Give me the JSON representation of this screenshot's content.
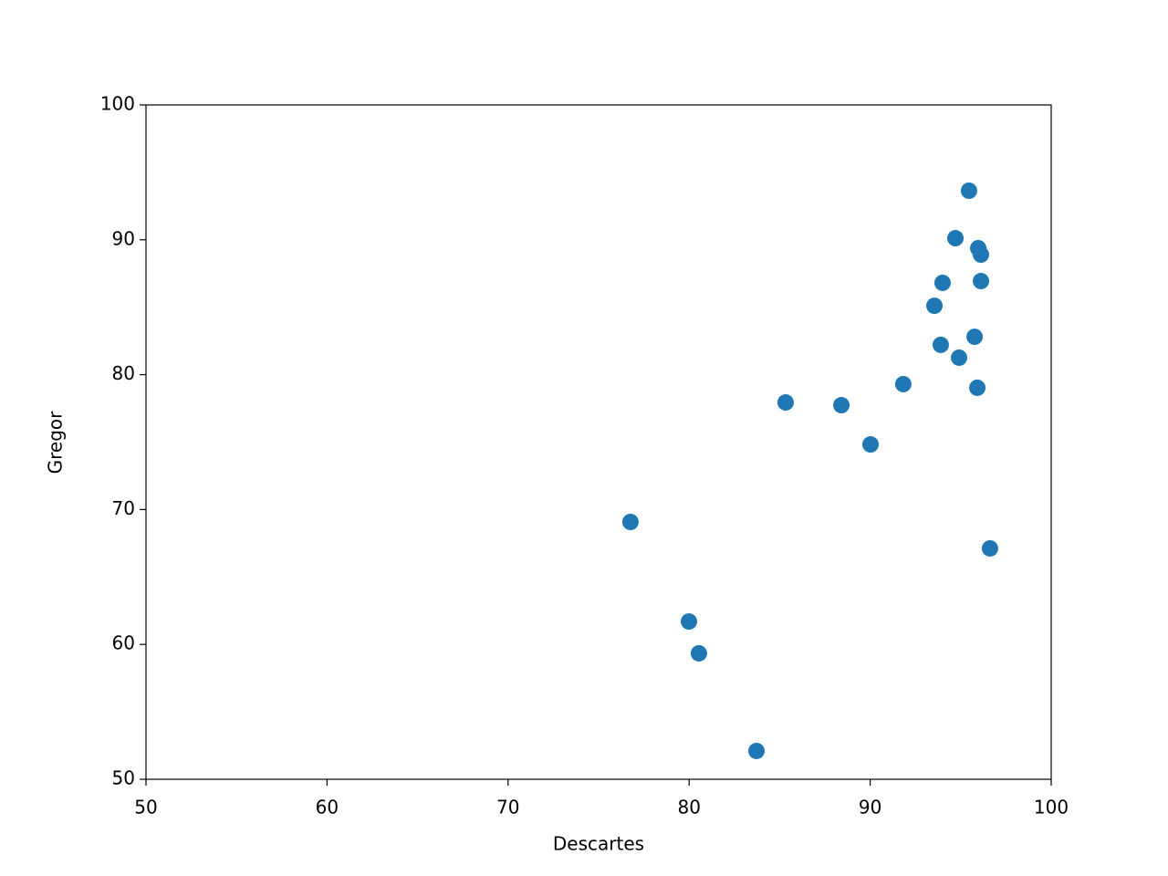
{
  "chart_data": {
    "type": "scatter",
    "x_label": "Descartes",
    "y_label": "Gregor",
    "color": "#1f77b4",
    "x": [
      95.46,
      94.71,
      95.97,
      96.12,
      94.0,
      96.12,
      93.55,
      95.77,
      93.9,
      94.91,
      91.83,
      95.92,
      85.33,
      88.41,
      90.02,
      76.76,
      96.62,
      79.99,
      80.54,
      83.72
    ],
    "values": [
      93.64,
      90.12,
      89.38,
      88.9,
      86.81,
      86.94,
      85.11,
      82.81,
      82.21,
      81.26,
      79.3,
      79.03,
      77.94,
      77.74,
      74.83,
      69.08,
      67.12,
      61.7,
      59.34,
      52.1
    ],
    "xlim": [
      50,
      100
    ],
    "xticks": [
      50,
      60,
      70,
      80,
      90,
      100
    ],
    "ylim": [
      50,
      100
    ],
    "yticks": [
      50,
      60,
      70,
      80,
      90,
      100
    ],
    "grid": false
  }
}
